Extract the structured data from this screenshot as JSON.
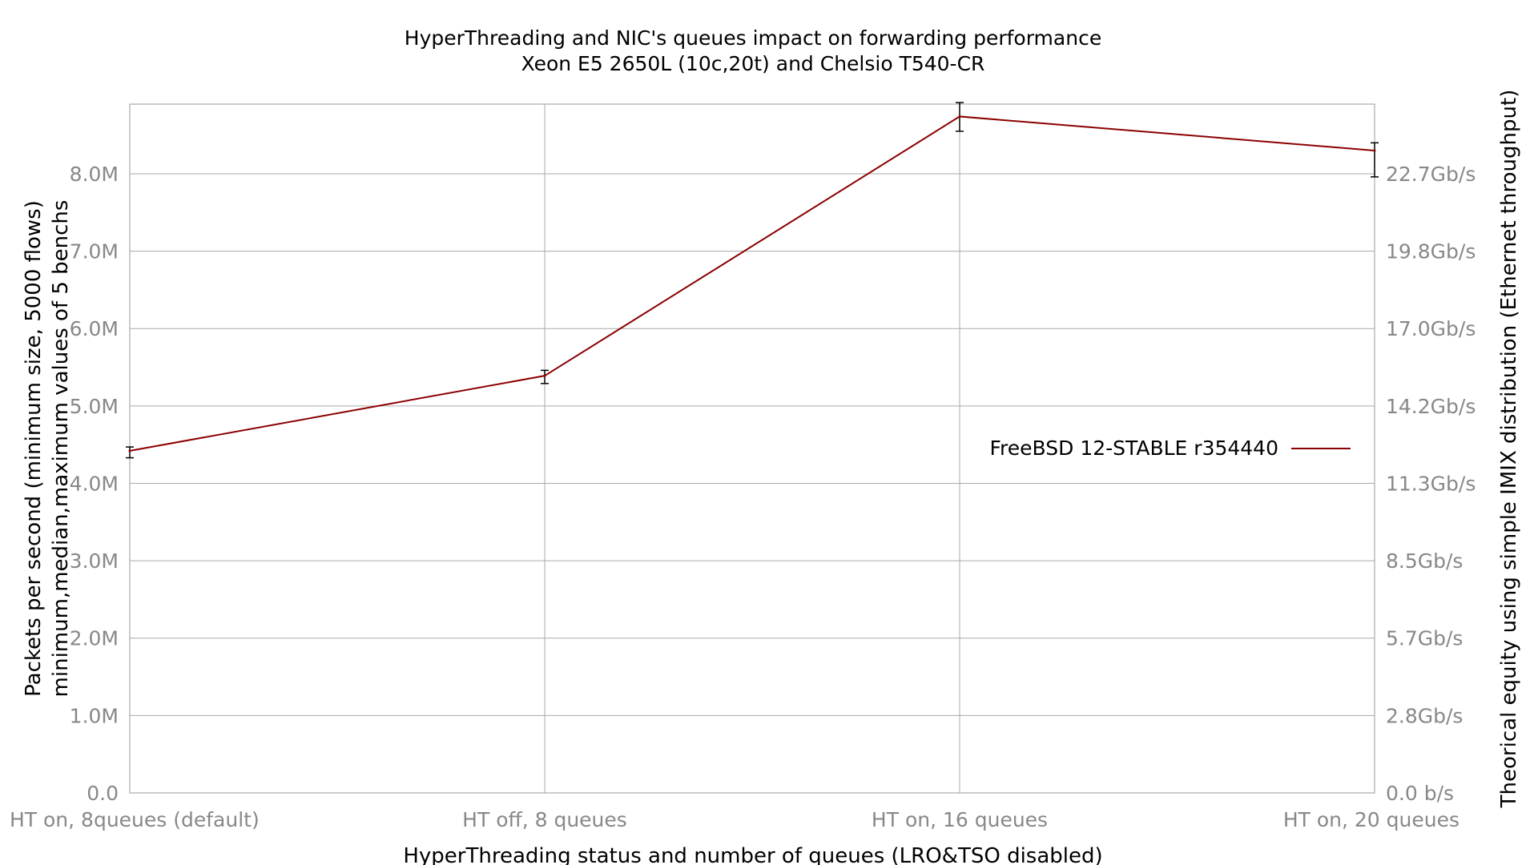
{
  "chart_data": {
    "type": "line",
    "title": "HyperThreading and NIC's queues impact on forwarding performance",
    "subtitle": "Xeon E5 2650L (10c,20t) and Chelsio T540-CR",
    "xlabel": "HyperThreading status and number of queues (LRO&TSO disabled)",
    "ylabel": "Packets per second (minimum size, 5000 flows)",
    "ylabel2": "minimum,median,maximum values of 5 benchs",
    "y2label": "Theorical equity using simple IMIX distribution (Ethernet throughput)",
    "categories": [
      "HT on, 8queues (default)",
      "HT off, 8 queues",
      "HT on, 16 queues",
      "HT on, 20 queues"
    ],
    "ylim": [
      0,
      8.9
    ],
    "y_ticks": [
      {
        "value": 0,
        "label": "0.0"
      },
      {
        "value": 1,
        "label": "1.0M"
      },
      {
        "value": 2,
        "label": "2.0M"
      },
      {
        "value": 3,
        "label": "3.0M"
      },
      {
        "value": 4,
        "label": "4.0M"
      },
      {
        "value": 5,
        "label": "5.0M"
      },
      {
        "value": 6,
        "label": "6.0M"
      },
      {
        "value": 7,
        "label": "7.0M"
      },
      {
        "value": 8,
        "label": "8.0M"
      }
    ],
    "y2_ticks": [
      {
        "value": 0,
        "label": "0.0 b/s"
      },
      {
        "value": 1,
        "label": "2.8Gb/s"
      },
      {
        "value": 2,
        "label": "5.7Gb/s"
      },
      {
        "value": 3,
        "label": "8.5Gb/s"
      },
      {
        "value": 4,
        "label": "11.3Gb/s"
      },
      {
        "value": 5,
        "label": "14.2Gb/s"
      },
      {
        "value": 6,
        "label": "17.0Gb/s"
      },
      {
        "value": 7,
        "label": "19.8Gb/s"
      },
      {
        "value": 8,
        "label": "22.7Gb/s"
      }
    ],
    "grid": true,
    "legend_position": "right",
    "series": [
      {
        "name": "FreeBSD 12-STABLE r354440",
        "color": "#8b0000",
        "values": [
          4.42,
          5.39,
          8.74,
          8.3
        ],
        "min": [
          4.33,
          5.29,
          8.55,
          7.96
        ],
        "max": [
          4.47,
          5.46,
          8.92,
          8.4
        ]
      }
    ]
  }
}
